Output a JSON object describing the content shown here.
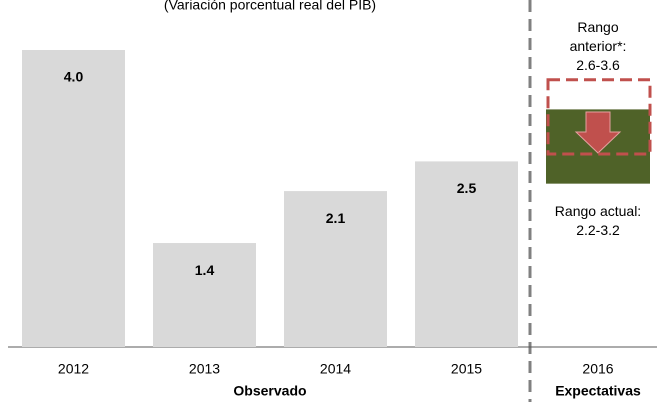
{
  "chart_data": {
    "type": "bar",
    "subtitle": "(Variación porcentual real del PIB)",
    "categories": [
      "2012",
      "2013",
      "2014",
      "2015"
    ],
    "values": [
      4.0,
      1.4,
      2.1,
      2.5
    ],
    "value_labels": [
      "4.0",
      "1.4",
      "2.1",
      "2.5"
    ],
    "color": "#d9d9d9",
    "range": {
      "category": "2016",
      "previous": {
        "label": "Rango anterior*:",
        "low": 2.6,
        "high": 3.6,
        "value_label": "2.6-3.6",
        "color": "#c0504d"
      },
      "current": {
        "label": "Rango actual:",
        "low": 2.2,
        "high": 3.2,
        "value_label": "2.2-3.2",
        "color": "#4f6228"
      }
    },
    "groups": [
      "Observado",
      "Expectativas"
    ]
  }
}
